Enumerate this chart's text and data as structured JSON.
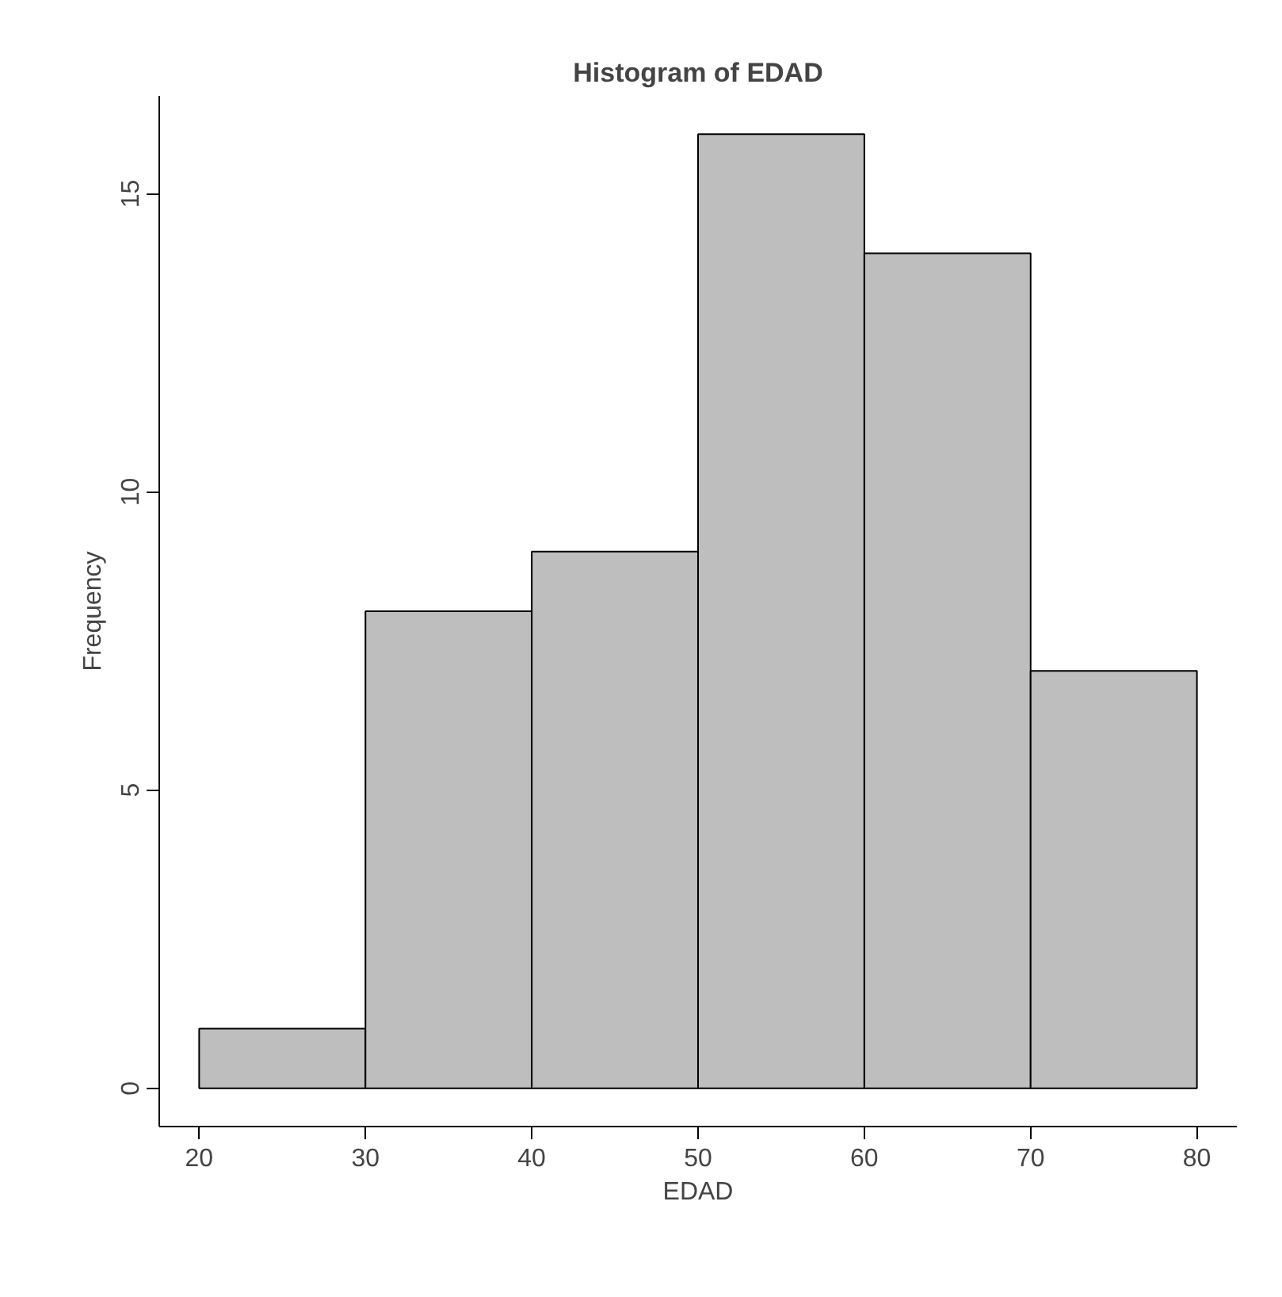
{
  "chart_data": {
    "type": "histogram",
    "title": "Histogram of EDAD",
    "xlabel": "EDAD",
    "ylabel": "Frequency",
    "bins": [
      20,
      30,
      40,
      50,
      60,
      70,
      80
    ],
    "values": [
      1,
      8,
      9,
      16,
      14,
      7
    ],
    "color": "#bebebe",
    "xlim": [
      17.6,
      82.4
    ],
    "ylim": [
      -0.64,
      16.64
    ],
    "xticks": [
      20,
      30,
      40,
      50,
      60,
      70,
      80
    ],
    "yticks": [
      0,
      5,
      10,
      15
    ],
    "grid": false
  }
}
